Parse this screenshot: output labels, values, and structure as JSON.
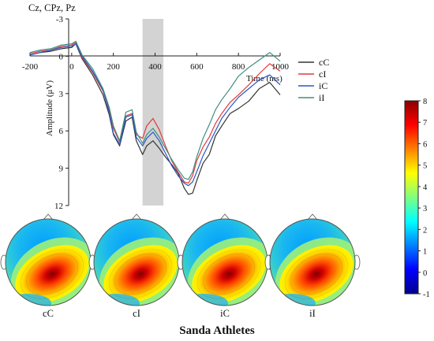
{
  "channel_label": "Cz, CPz, Pz",
  "caption": "Sanda Athletes",
  "chart_data": {
    "type": "line",
    "x_label": "Time (ms)",
    "y_label": "Amplitude (μV)",
    "xlim": [
      -200,
      1000
    ],
    "ylim": [
      -3,
      12
    ],
    "y_inverted": true,
    "x_ticks": [
      "-200",
      "0",
      "200",
      "400",
      "600",
      "800",
      "1000"
    ],
    "y_ticks": [
      "-3",
      "0",
      "3",
      "6",
      "9",
      "12"
    ],
    "highlight_window_ms": [
      340,
      440
    ],
    "highlight_color": "#d3d3d3",
    "legend_position": "right",
    "series": [
      {
        "name": "cC",
        "color": "#333333",
        "x": [
          -200,
          -150,
          -100,
          -50,
          0,
          20,
          50,
          100,
          150,
          180,
          200,
          230,
          260,
          290,
          310,
          340,
          360,
          390,
          420,
          450,
          480,
          510,
          540,
          560,
          580,
          600,
          630,
          660,
          690,
          720,
          760,
          800,
          850,
          900,
          950,
          1000
        ],
        "y": [
          -0.1,
          -0.3,
          -0.4,
          -0.6,
          -0.7,
          -1.0,
          0.2,
          1.5,
          3.1,
          4.7,
          6.3,
          7.2,
          5.2,
          4.9,
          6.8,
          7.9,
          7.2,
          6.8,
          7.4,
          8.1,
          8.7,
          9.4,
          10.6,
          11.1,
          11.0,
          10.0,
          8.6,
          7.9,
          6.4,
          5.6,
          4.6,
          4.2,
          3.6,
          2.6,
          2.1,
          3.1
        ]
      },
      {
        "name": "cI",
        "color": "#e23a3a",
        "x": [
          -200,
          -150,
          -100,
          -50,
          0,
          20,
          50,
          100,
          150,
          180,
          200,
          230,
          260,
          290,
          310,
          340,
          360,
          390,
          420,
          450,
          480,
          510,
          540,
          560,
          580,
          600,
          630,
          660,
          690,
          720,
          760,
          800,
          850,
          900,
          950,
          1000
        ],
        "y": [
          -0.2,
          -0.4,
          -0.5,
          -0.8,
          -0.9,
          -1.1,
          0.1,
          1.3,
          2.8,
          4.3,
          5.8,
          6.9,
          4.8,
          4.6,
          6.3,
          6.6,
          5.6,
          5.0,
          5.9,
          7.2,
          8.4,
          9.3,
          10.1,
          10.2,
          9.6,
          8.4,
          7.3,
          6.5,
          5.4,
          4.6,
          3.7,
          3.1,
          2.3,
          1.4,
          0.6,
          1.2
        ]
      },
      {
        "name": "iC",
        "color": "#2a57c7",
        "x": [
          -200,
          -150,
          -100,
          -50,
          0,
          20,
          50,
          100,
          150,
          180,
          200,
          230,
          260,
          290,
          310,
          340,
          360,
          390,
          420,
          450,
          480,
          510,
          540,
          560,
          580,
          600,
          630,
          660,
          690,
          720,
          760,
          800,
          850,
          900,
          950,
          1000
        ],
        "y": [
          -0.1,
          -0.3,
          -0.5,
          -0.7,
          -0.8,
          -1.0,
          0.0,
          1.2,
          2.7,
          4.5,
          6.2,
          7.1,
          4.9,
          4.7,
          6.5,
          7.2,
          6.6,
          6.1,
          6.8,
          7.8,
          8.8,
          9.6,
          10.2,
          10.4,
          10.1,
          9.3,
          8.0,
          7.0,
          6.0,
          5.0,
          4.1,
          3.3,
          2.6,
          1.9,
          1.5,
          2.3
        ]
      },
      {
        "name": "iI",
        "color": "#3f8f80",
        "x": [
          -200,
          -150,
          -100,
          -50,
          0,
          20,
          50,
          100,
          150,
          180,
          200,
          230,
          260,
          290,
          310,
          340,
          360,
          390,
          420,
          450,
          480,
          510,
          540,
          560,
          580,
          600,
          630,
          660,
          690,
          720,
          760,
          800,
          850,
          900,
          950,
          1000
        ],
        "y": [
          -0.3,
          -0.5,
          -0.6,
          -0.9,
          -1.0,
          -1.2,
          -0.1,
          1.0,
          2.6,
          4.1,
          5.6,
          6.8,
          4.5,
          4.3,
          6.1,
          7.0,
          6.3,
          5.8,
          6.5,
          7.4,
          8.3,
          9.1,
          9.8,
          9.9,
          9.3,
          8.1,
          6.6,
          5.5,
          4.3,
          3.5,
          2.6,
          1.6,
          0.9,
          0.3,
          -0.3,
          0.4
        ]
      }
    ]
  },
  "colorbar": {
    "min": -1,
    "max": 8,
    "ticks": [
      "-1",
      "0",
      "1",
      "2",
      "3",
      "4",
      "5",
      "6",
      "7",
      "8"
    ],
    "stops": [
      "#00008b",
      "#0000ff",
      "#0080ff",
      "#00ffff",
      "#80ff80",
      "#ffff00",
      "#ff8000",
      "#ff0000",
      "#8b0000"
    ]
  },
  "topomaps": [
    {
      "label": "cC"
    },
    {
      "label": "cI"
    },
    {
      "label": "iC"
    },
    {
      "label": "iI"
    }
  ]
}
